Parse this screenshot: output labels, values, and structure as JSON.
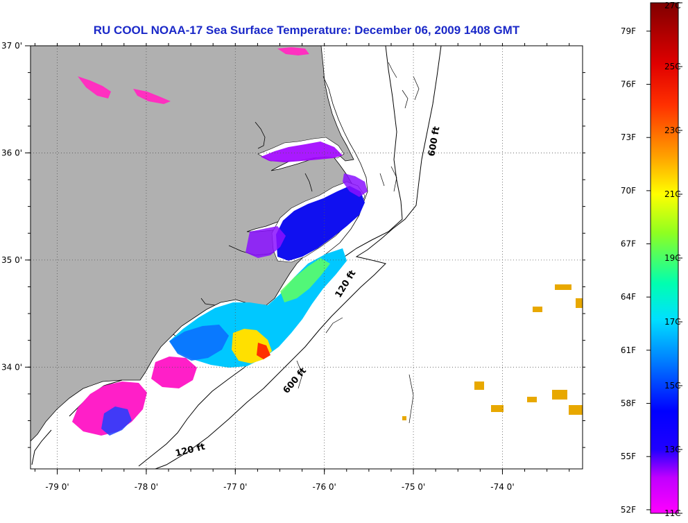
{
  "title": "RU COOL  NOAA-17  Sea Surface Temperature:  December 06, 2009 1408 GMT",
  "map": {
    "lon_range": [
      -79.3,
      -73.1
    ],
    "lat_range": [
      33.05,
      37.0
    ],
    "lon_ticks": [
      {
        "value": -79,
        "label": "-79 0'"
      },
      {
        "value": -78,
        "label": "-78 0'"
      },
      {
        "value": -77,
        "label": "-77 0'"
      },
      {
        "value": -76,
        "label": "-76 0'"
      },
      {
        "value": -75,
        "label": "-75 0'"
      },
      {
        "value": -74,
        "label": "-74 0'"
      }
    ],
    "lat_ticks": [
      {
        "value": 37,
        "label": "37 0'"
      },
      {
        "value": 36,
        "label": "36 0'"
      },
      {
        "value": 35,
        "label": "35 0'"
      },
      {
        "value": 34,
        "label": "34 0'"
      }
    ],
    "grid": "dotted",
    "land_color": "#b0b0b0",
    "ocean_color": "#ffffff",
    "isobath_labels": [
      "600 ft",
      "120 ft",
      "600 ft",
      "120 ft"
    ]
  },
  "colorbar": {
    "min_c": 11,
    "max_c": 27,
    "fahrenheit_labels": [
      "79F",
      "76F",
      "73F",
      "70F",
      "67F",
      "64F",
      "61F",
      "58F",
      "55F",
      "52F"
    ],
    "celsius_labels": [
      "27C",
      "25C",
      "23C",
      "21C",
      "19C",
      "17C",
      "15C",
      "13C",
      "11C"
    ],
    "colors": [
      "#ff00ff",
      "#7f00ff",
      "#0000ff",
      "#0070ff",
      "#00d0ff",
      "#00ffc0",
      "#60ff40",
      "#ffff00",
      "#ffb000",
      "#ff5000",
      "#ff0000",
      "#b00000",
      "#800000"
    ]
  }
}
